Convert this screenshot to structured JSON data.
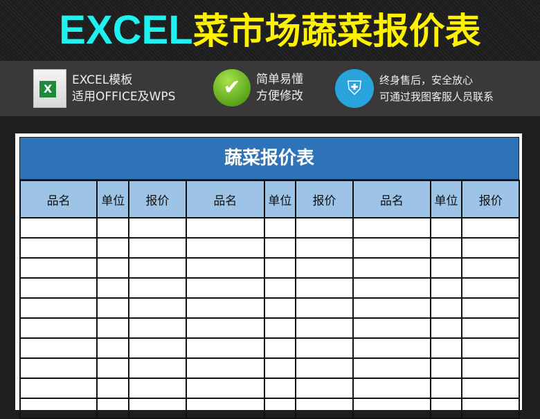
{
  "banner": {
    "title_en": "EXCEL",
    "title_cn": "菜市场蔬菜报价表"
  },
  "features": [
    {
      "icon": "excel-file-icon",
      "line1": "EXCEL模板",
      "line2": "适用OFFICE及WPS"
    },
    {
      "icon": "checkmark-icon",
      "line1": "简单易懂",
      "line2": "方便修改"
    },
    {
      "icon": "shield-plus-icon",
      "line1": "终身售后，安全放心",
      "line2": "可通过我图客服人员联系"
    }
  ],
  "sheet": {
    "title": "蔬菜报价表",
    "columns": [
      "品名",
      "单位",
      "报价",
      "品名",
      "单位",
      "报价",
      "品名",
      "单位",
      "报价"
    ],
    "row_count": 10
  },
  "colors": {
    "title_en": "#1ff0f0",
    "title_cn": "#fff200",
    "header_blue": "#2e73b8",
    "column_header": "#9dc3e6"
  }
}
